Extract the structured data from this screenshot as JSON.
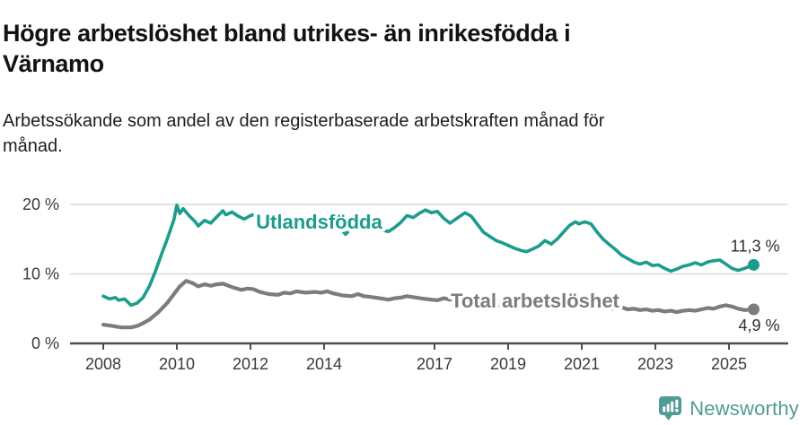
{
  "header": {
    "title_lines": [
      "Högre arbetslöshet bland utrikes- än inrikesfödda i",
      "Värnamo"
    ],
    "subtitle_lines": [
      "Arbetssökande som andel av den registerbaserade arbetskraften månad för",
      "månad."
    ]
  },
  "footer": {
    "brand": "Newsworthy",
    "brand_color": "#4E9C94",
    "logo_icon": "bar-chart-speech-bubble-icon"
  },
  "chart_data": {
    "type": "line",
    "title": "Högre arbetslöshet bland utrikes- än inrikesfödda i Värnamo",
    "subtitle": "Arbetssökande som andel av den registerbaserade arbetskraften månad för månad.",
    "grid": "horizontal",
    "legend_position": "inline-labels",
    "x_axis": {
      "ticks": [
        2008,
        2010,
        2012,
        2014,
        2017,
        2019,
        2021,
        2023,
        2025
      ],
      "range_years": [
        2007.1,
        2026.6
      ]
    },
    "y_axis": {
      "ticks": [
        0,
        10,
        20
      ],
      "suffix": " %",
      "range": [
        0,
        21
      ]
    },
    "colors": {
      "grid": "#D8D8D8",
      "axis": "#4D4D4D",
      "tick_label": "#3A3A3A",
      "value_label": "#2E2E2E",
      "background": "#FFFFFF"
    },
    "series": [
      {
        "id": "total",
        "name": "Total arbetslöshet",
        "color": "#7C7C7C",
        "stroke_width": 4.2,
        "end_value": 4.9,
        "end_label": {
          "text": "4,9 %",
          "position": "below"
        },
        "inline_label": {
          "text": "Total arbetslöshet",
          "x_year": 2017.44,
          "y_pct": 5.16
        },
        "points": [
          [
            2008.0,
            2.7
          ],
          [
            2008.25,
            2.5
          ],
          [
            2008.5,
            2.3
          ],
          [
            2008.75,
            2.3
          ],
          [
            2008.92,
            2.5
          ],
          [
            2009.08,
            2.9
          ],
          [
            2009.25,
            3.4
          ],
          [
            2009.5,
            4.5
          ],
          [
            2009.75,
            5.9
          ],
          [
            2009.92,
            7.1
          ],
          [
            2010.08,
            8.2
          ],
          [
            2010.25,
            9.0
          ],
          [
            2010.42,
            8.7
          ],
          [
            2010.58,
            8.2
          ],
          [
            2010.75,
            8.5
          ],
          [
            2010.92,
            8.3
          ],
          [
            2011.08,
            8.5
          ],
          [
            2011.25,
            8.6
          ],
          [
            2011.5,
            8.1
          ],
          [
            2011.75,
            7.7
          ],
          [
            2011.92,
            7.9
          ],
          [
            2012.08,
            7.8
          ],
          [
            2012.25,
            7.4
          ],
          [
            2012.5,
            7.1
          ],
          [
            2012.75,
            7.0
          ],
          [
            2012.92,
            7.3
          ],
          [
            2013.08,
            7.2
          ],
          [
            2013.25,
            7.5
          ],
          [
            2013.5,
            7.3
          ],
          [
            2013.75,
            7.4
          ],
          [
            2013.92,
            7.3
          ],
          [
            2014.08,
            7.5
          ],
          [
            2014.25,
            7.2
          ],
          [
            2014.5,
            6.9
          ],
          [
            2014.75,
            6.8
          ],
          [
            2014.92,
            7.1
          ],
          [
            2015.08,
            6.8
          ],
          [
            2015.25,
            6.7
          ],
          [
            2015.5,
            6.5
          ],
          [
            2015.75,
            6.3
          ],
          [
            2015.92,
            6.5
          ],
          [
            2016.08,
            6.6
          ],
          [
            2016.25,
            6.8
          ],
          [
            2016.5,
            6.6
          ],
          [
            2016.75,
            6.4
          ],
          [
            2016.92,
            6.3
          ],
          [
            2017.08,
            6.2
          ],
          [
            2017.25,
            6.5
          ],
          [
            2017.42,
            6.3
          ],
          [
            2017.58,
            6.2
          ],
          [
            2017.83,
            6.0
          ],
          [
            2018.08,
            5.9
          ],
          [
            2018.33,
            5.7
          ],
          [
            2018.58,
            5.6
          ],
          [
            2018.83,
            5.4
          ],
          [
            2019.08,
            5.3
          ],
          [
            2019.33,
            5.2
          ],
          [
            2019.58,
            5.1
          ],
          [
            2019.83,
            5.2
          ],
          [
            2020.08,
            5.4
          ],
          [
            2020.33,
            5.8
          ],
          [
            2020.58,
            5.9
          ],
          [
            2020.83,
            5.7
          ],
          [
            2021.08,
            5.6
          ],
          [
            2021.33,
            5.4
          ],
          [
            2021.58,
            5.2
          ],
          [
            2021.83,
            5.0
          ],
          [
            2022.08,
            5.2
          ],
          [
            2022.25,
            4.9
          ],
          [
            2022.42,
            5.0
          ],
          [
            2022.58,
            4.8
          ],
          [
            2022.75,
            4.9
          ],
          [
            2022.92,
            4.7
          ],
          [
            2023.08,
            4.8
          ],
          [
            2023.25,
            4.6
          ],
          [
            2023.42,
            4.7
          ],
          [
            2023.58,
            4.5
          ],
          [
            2023.75,
            4.7
          ],
          [
            2023.92,
            4.8
          ],
          [
            2024.08,
            4.7
          ],
          [
            2024.25,
            4.9
          ],
          [
            2024.42,
            5.1
          ],
          [
            2024.58,
            5.0
          ],
          [
            2024.75,
            5.3
          ],
          [
            2024.92,
            5.5
          ],
          [
            2025.08,
            5.3
          ],
          [
            2025.25,
            5.0
          ],
          [
            2025.42,
            4.8
          ],
          [
            2025.67,
            4.9
          ]
        ]
      },
      {
        "id": "utlandsfodda",
        "name": "Utlandsfödda",
        "color": "#1B9C8C",
        "stroke_width": 3.6,
        "end_value": 11.3,
        "end_label": {
          "text": "11,3 %",
          "position": "above"
        },
        "inline_label": {
          "text": "Utlandsfödda",
          "x_year": 2012.15,
          "y_pct": 16.52
        },
        "points": [
          [
            2008.0,
            6.8
          ],
          [
            2008.17,
            6.4
          ],
          [
            2008.33,
            6.6
          ],
          [
            2008.42,
            6.2
          ],
          [
            2008.58,
            6.4
          ],
          [
            2008.75,
            5.5
          ],
          [
            2008.92,
            5.8
          ],
          [
            2009.08,
            6.6
          ],
          [
            2009.25,
            8.2
          ],
          [
            2009.42,
            10.4
          ],
          [
            2009.58,
            12.8
          ],
          [
            2009.75,
            15.2
          ],
          [
            2009.92,
            17.8
          ],
          [
            2010.0,
            19.9
          ],
          [
            2010.08,
            18.7
          ],
          [
            2010.17,
            19.4
          ],
          [
            2010.33,
            18.4
          ],
          [
            2010.5,
            17.5
          ],
          [
            2010.58,
            16.9
          ],
          [
            2010.75,
            17.7
          ],
          [
            2010.92,
            17.3
          ],
          [
            2011.08,
            18.2
          ],
          [
            2011.25,
            19.1
          ],
          [
            2011.33,
            18.5
          ],
          [
            2011.5,
            18.9
          ],
          [
            2011.67,
            18.3
          ],
          [
            2011.83,
            17.9
          ],
          [
            2012.0,
            18.4
          ],
          [
            2012.17,
            18.6
          ],
          [
            2012.33,
            18.1
          ],
          [
            2012.58,
            18.0
          ],
          [
            2012.83,
            17.8
          ],
          [
            2013.0,
            18.2
          ],
          [
            2013.25,
            17.7
          ],
          [
            2013.5,
            17.9
          ],
          [
            2013.75,
            17.6
          ],
          [
            2014.0,
            17.8
          ],
          [
            2014.17,
            17.3
          ],
          [
            2014.33,
            16.8
          ],
          [
            2014.5,
            16.2
          ],
          [
            2014.58,
            15.7
          ],
          [
            2014.75,
            16.6
          ],
          [
            2014.92,
            16.9
          ],
          [
            2015.08,
            17.1
          ],
          [
            2015.25,
            16.5
          ],
          [
            2015.42,
            16.9
          ],
          [
            2015.58,
            16.3
          ],
          [
            2015.75,
            16.1
          ],
          [
            2015.92,
            16.7
          ],
          [
            2016.08,
            17.4
          ],
          [
            2016.25,
            18.4
          ],
          [
            2016.42,
            18.1
          ],
          [
            2016.58,
            18.7
          ],
          [
            2016.75,
            19.2
          ],
          [
            2016.92,
            18.8
          ],
          [
            2017.08,
            19.0
          ],
          [
            2017.25,
            18.0
          ],
          [
            2017.42,
            17.3
          ],
          [
            2017.58,
            17.9
          ],
          [
            2017.83,
            18.8
          ],
          [
            2018.0,
            18.3
          ],
          [
            2018.17,
            17.1
          ],
          [
            2018.33,
            16.0
          ],
          [
            2018.5,
            15.4
          ],
          [
            2018.67,
            14.8
          ],
          [
            2018.83,
            14.5
          ],
          [
            2019.0,
            14.1
          ],
          [
            2019.17,
            13.7
          ],
          [
            2019.33,
            13.4
          ],
          [
            2019.5,
            13.2
          ],
          [
            2019.67,
            13.6
          ],
          [
            2019.83,
            14.0
          ],
          [
            2020.0,
            14.8
          ],
          [
            2020.17,
            14.3
          ],
          [
            2020.33,
            15.0
          ],
          [
            2020.5,
            16.0
          ],
          [
            2020.67,
            17.0
          ],
          [
            2020.83,
            17.5
          ],
          [
            2020.92,
            17.2
          ],
          [
            2021.08,
            17.5
          ],
          [
            2021.25,
            17.2
          ],
          [
            2021.42,
            16.0
          ],
          [
            2021.58,
            15.0
          ],
          [
            2021.75,
            14.2
          ],
          [
            2021.92,
            13.5
          ],
          [
            2022.08,
            12.7
          ],
          [
            2022.25,
            12.2
          ],
          [
            2022.42,
            11.7
          ],
          [
            2022.58,
            11.4
          ],
          [
            2022.75,
            11.7
          ],
          [
            2022.92,
            11.2
          ],
          [
            2023.08,
            11.3
          ],
          [
            2023.25,
            10.8
          ],
          [
            2023.42,
            10.4
          ],
          [
            2023.58,
            10.7
          ],
          [
            2023.75,
            11.1
          ],
          [
            2023.92,
            11.3
          ],
          [
            2024.08,
            11.6
          ],
          [
            2024.25,
            11.3
          ],
          [
            2024.42,
            11.7
          ],
          [
            2024.58,
            11.9
          ],
          [
            2024.75,
            12.0
          ],
          [
            2024.92,
            11.4
          ],
          [
            2025.08,
            10.8
          ],
          [
            2025.25,
            10.5
          ],
          [
            2025.42,
            10.8
          ],
          [
            2025.67,
            11.3
          ]
        ]
      }
    ]
  }
}
